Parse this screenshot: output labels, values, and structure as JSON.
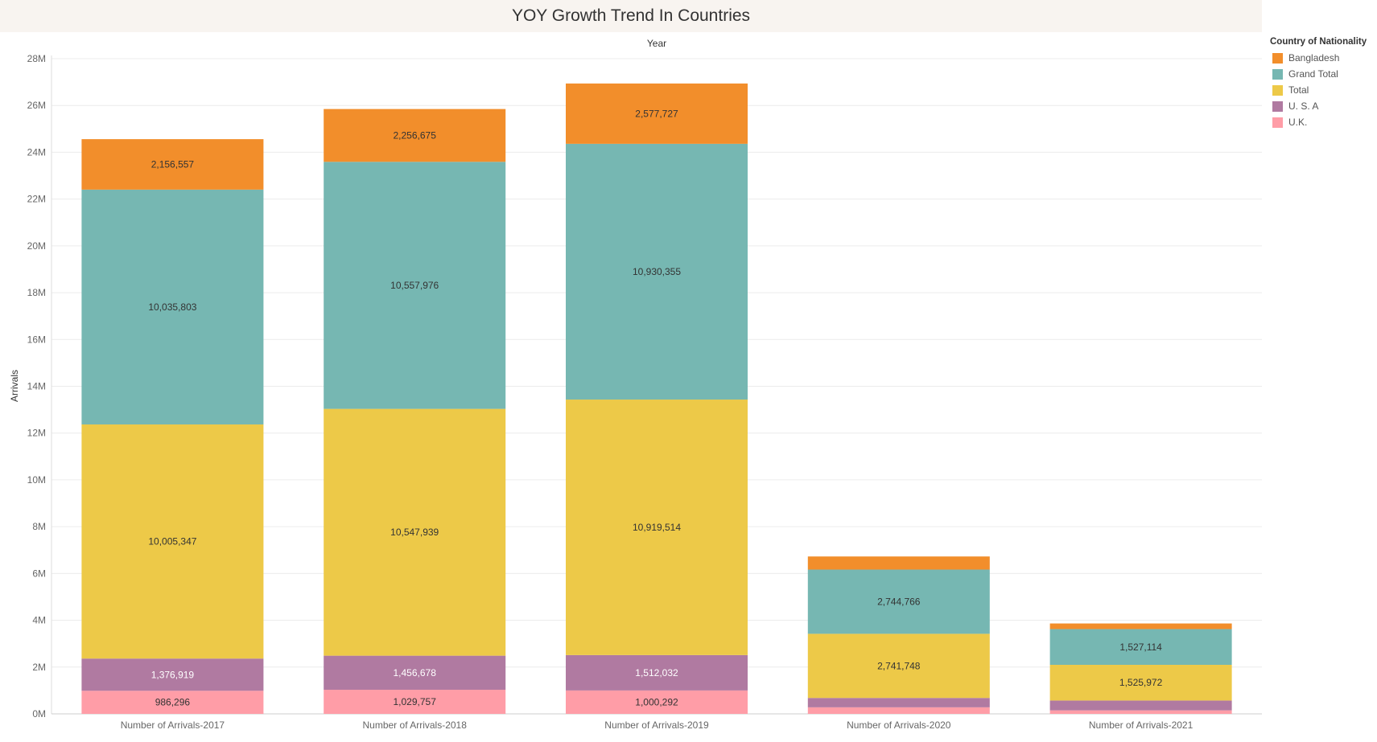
{
  "chart_data": {
    "type": "bar",
    "stacked": true,
    "title": "YOY Growth Trend In Countries",
    "column_header": "Year",
    "ylabel": "Arrivals",
    "ylim": [
      0,
      28000000
    ],
    "yticks": [
      0,
      2000000,
      4000000,
      6000000,
      8000000,
      10000000,
      12000000,
      14000000,
      16000000,
      18000000,
      20000000,
      22000000,
      24000000,
      26000000,
      28000000
    ],
    "ytick_labels": [
      "0M",
      "2M",
      "4M",
      "6M",
      "8M",
      "10M",
      "12M",
      "14M",
      "16M",
      "18M",
      "20M",
      "22M",
      "24M",
      "26M",
      "28M"
    ],
    "categories": [
      "Number of Arrivals-2017",
      "Number of Arrivals-2018",
      "Number of Arrivals-2019",
      "Number of Arrivals-2020",
      "Number of Arrivals-2021"
    ],
    "grid": "horizontal",
    "legend": {
      "title": "Country of Nationality",
      "position": "right"
    },
    "series": [
      {
        "name": "U.K.",
        "color": "#ff9da7",
        "values": [
          986296,
          1029757,
          1000292,
          280000,
          150000
        ],
        "labels": [
          "986,296",
          "1,029,757",
          "1,000,292",
          "",
          ""
        ],
        "label_color": "#333333"
      },
      {
        "name": "U. S. A",
        "color": "#b07aa1",
        "values": [
          1376919,
          1456678,
          1512032,
          400000,
          420000
        ],
        "labels": [
          "1,376,919",
          "1,456,678",
          "1,512,032",
          "",
          ""
        ],
        "label_color": "#ffffff"
      },
      {
        "name": "Total",
        "color": "#edc948",
        "values": [
          10005347,
          10547939,
          10919514,
          2741748,
          1525972
        ],
        "labels": [
          "10,005,347",
          "10,547,939",
          "10,919,514",
          "2,741,748",
          "1,525,972"
        ],
        "label_color": "#333333"
      },
      {
        "name": "Grand Total",
        "color": "#76b7b2",
        "values": [
          10035803,
          10557976,
          10930355,
          2744766,
          1527114
        ],
        "labels": [
          "10,035,803",
          "10,557,976",
          "10,930,355",
          "2,744,766",
          "1,527,114"
        ],
        "label_color": "#333333"
      },
      {
        "name": "Bangladesh",
        "color": "#f28e2b",
        "values": [
          2156557,
          2256675,
          2577727,
          560000,
          240000
        ],
        "labels": [
          "2,156,557",
          "2,256,675",
          "2,577,727",
          "",
          ""
        ],
        "label_color": "#333333"
      }
    ],
    "legend_order": [
      "Bangladesh",
      "Grand Total",
      "Total",
      "U. S. A",
      "U.K."
    ]
  }
}
